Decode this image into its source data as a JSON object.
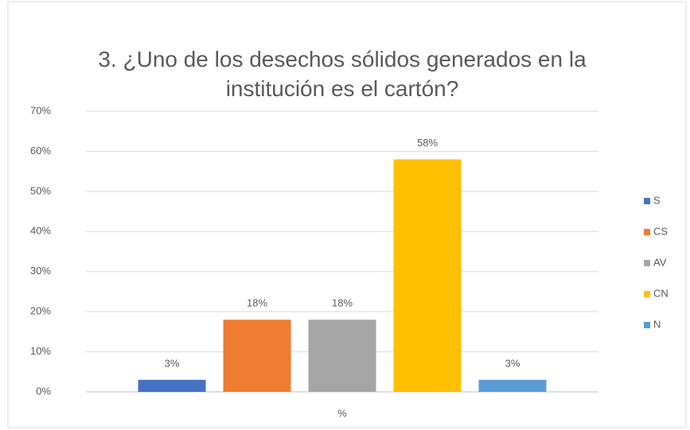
{
  "chart_data": {
    "type": "bar",
    "title": "3. ¿Uno de los desechos sólidos generados en la institución es el cartón?",
    "categories": [
      "%"
    ],
    "series": [
      {
        "name": "S",
        "color": "#4472c4",
        "values": [
          3
        ],
        "value_labels": [
          "3%"
        ]
      },
      {
        "name": "CS",
        "color": "#ed7d31",
        "values": [
          18
        ],
        "value_labels": [
          "18%"
        ]
      },
      {
        "name": "AV",
        "color": "#a5a5a5",
        "values": [
          18
        ],
        "value_labels": [
          "18%"
        ]
      },
      {
        "name": "CN",
        "color": "#ffc000",
        "values": [
          58
        ],
        "value_labels": [
          "58%"
        ]
      },
      {
        "name": "N",
        "color": "#5b9bd5",
        "values": [
          3
        ],
        "value_labels": [
          "3%"
        ]
      }
    ],
    "ylim": [
      0,
      70
    ],
    "yticks": [
      {
        "value": 0,
        "label": "0%"
      },
      {
        "value": 10,
        "label": "10%"
      },
      {
        "value": 20,
        "label": "20%"
      },
      {
        "value": 30,
        "label": "30%"
      },
      {
        "value": 40,
        "label": "40%"
      },
      {
        "value": 50,
        "label": "50%"
      },
      {
        "value": 60,
        "label": "60%"
      },
      {
        "value": 70,
        "label": "70%"
      }
    ],
    "grid": true,
    "legend": "right"
  }
}
